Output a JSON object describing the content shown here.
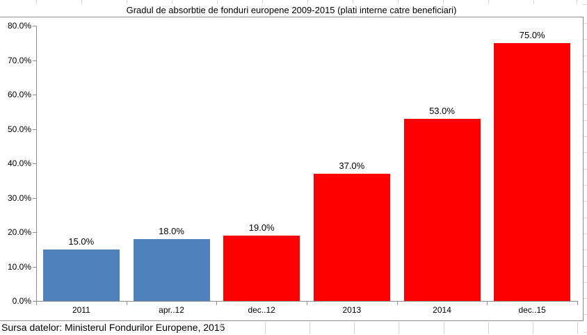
{
  "chart_data": {
    "type": "bar",
    "title": "Gradul de absorbtie de fonduri europene 2009-2015 (plati interne catre beneficiari)",
    "categories": [
      "2011",
      "apr..12",
      "dec..12",
      "2013",
      "2014",
      "dec..15"
    ],
    "values": [
      15.0,
      18.0,
      19.0,
      37.0,
      53.0,
      75.0
    ],
    "value_labels": [
      "15.0%",
      "18.0%",
      "19.0%",
      "37.0%",
      "53.0%",
      "75.0%"
    ],
    "bar_colors": [
      "#4f81bd",
      "#4f81bd",
      "#ff0000",
      "#ff0000",
      "#ff0000",
      "#ff0000"
    ],
    "ylim": [
      0,
      80
    ],
    "ytick_step": 10,
    "ytick_labels": [
      "0.0%",
      "10.0%",
      "20.0%",
      "30.0%",
      "40.0%",
      "50.0%",
      "60.0%",
      "70.0%",
      "80.0%"
    ],
    "grid": false,
    "legend_position": "none",
    "xlabel": "",
    "ylabel": ""
  },
  "source_note": "Sursa datelor: Ministerul Fondurilor Europene, 2015",
  "colors": {
    "bar_blue": "#4f81bd",
    "bar_red": "#ff0000",
    "axis": "#8c8c8c",
    "chart_border": "#8c8c8c",
    "cell_gridline": "#d6d6d6",
    "text": "#000000"
  }
}
